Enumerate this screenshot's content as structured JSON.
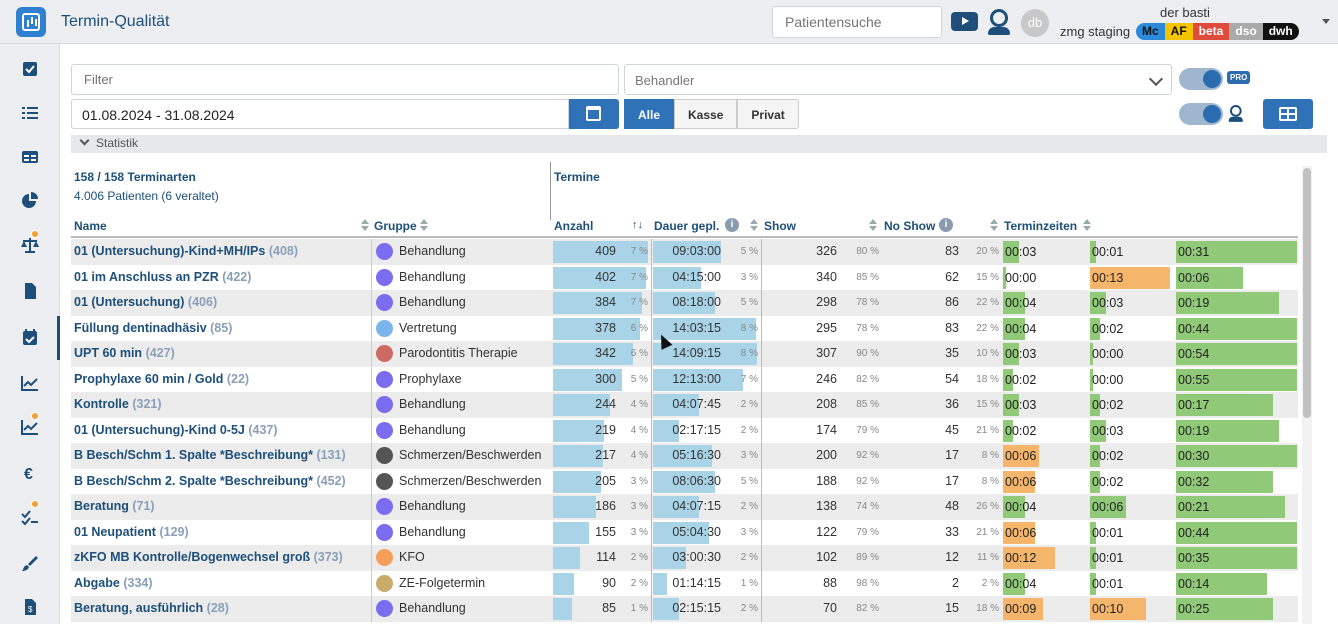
{
  "app": {
    "title": "Termin-Qualität"
  },
  "header": {
    "search_placeholder": "Patientensuche",
    "avatar": "db",
    "user": "der basti",
    "env": "zmg staging",
    "badges": [
      {
        "label": "Mc",
        "bg": "#2b8ad9",
        "fg": "#111"
      },
      {
        "label": "AF",
        "bg": "#f5c400",
        "fg": "#111"
      },
      {
        "label": "beta",
        "bg": "#e04b3b",
        "fg": "#fff"
      },
      {
        "label": "dso",
        "bg": "#aaaaaa",
        "fg": "#fff"
      },
      {
        "label": "dwh",
        "bg": "#111111",
        "fg": "#fff"
      }
    ]
  },
  "filters": {
    "filter_placeholder": "Filter",
    "behandler_placeholder": "Behandler",
    "date_range": "01.08.2024 - 31.08.2024",
    "pro_badge": "PRO",
    "segments": [
      "Alle",
      "Kasse",
      "Privat"
    ]
  },
  "statistik": {
    "label": "Statistik",
    "terminarten": "158 / 158 Terminarten",
    "patienten": "4.006 Patienten (6 veraltet)",
    "termine": "Termine"
  },
  "columns": {
    "name": "Name",
    "gruppe": "Gruppe",
    "anzahl": "Anzahl",
    "dauer": "Dauer gepl.",
    "show": "Show",
    "noshow": "No Show",
    "terminzeiten": "Terminzeiten"
  },
  "colors": {
    "primary": "#2f72b7",
    "bar_blue": "#a9d4e8",
    "bar_green": "#90c978",
    "bar_orange": "#f5b56a"
  },
  "rows": [
    {
      "name": "01 (Untersuchung)-Kind+MH/IPs",
      "id": "(408)",
      "group": "Behandlung",
      "gcolor": "#7b6cf0",
      "anzahl": "409",
      "anzahl_pct": "7 %",
      "anzahl_frac": 1.0,
      "dauer": "09:03:00",
      "dauer_pct": "5 %",
      "dauer_frac": 0.65,
      "show": "326",
      "show_pct": "80 %",
      "noshow": "83",
      "noshow_pct": "20 %",
      "tz": [
        {
          "t": "00:03",
          "c": "g",
          "f": 0.2
        },
        {
          "t": "00:01",
          "c": "g",
          "f": 0.07
        },
        {
          "t": "00:31",
          "c": "g",
          "f": 1.0
        }
      ]
    },
    {
      "name": "01 im Anschluss an PZR",
      "id": "(422)",
      "group": "Behandlung",
      "gcolor": "#7b6cf0",
      "anzahl": "402",
      "anzahl_pct": "7 %",
      "anzahl_frac": 0.98,
      "dauer": "04:15:00",
      "dauer_pct": "3 %",
      "dauer_frac": 0.46,
      "show": "340",
      "show_pct": "85 %",
      "noshow": "62",
      "noshow_pct": "15 %",
      "tz": [
        {
          "t": "00:00",
          "c": "g",
          "f": 0.02
        },
        {
          "t": "00:13",
          "c": "o",
          "f": 1.0
        },
        {
          "t": "00:06",
          "c": "g",
          "f": 0.55
        }
      ]
    },
    {
      "name": "01 (Untersuchung)",
      "id": "(406)",
      "group": "Behandlung",
      "gcolor": "#7b6cf0",
      "anzahl": "384",
      "anzahl_pct": "7 %",
      "anzahl_frac": 0.94,
      "dauer": "08:18:00",
      "dauer_pct": "5 %",
      "dauer_frac": 0.6,
      "show": "298",
      "show_pct": "78 %",
      "noshow": "86",
      "noshow_pct": "22 %",
      "tz": [
        {
          "t": "00:04",
          "c": "g",
          "f": 0.27
        },
        {
          "t": "00:03",
          "c": "g",
          "f": 0.2
        },
        {
          "t": "00:19",
          "c": "g",
          "f": 0.85
        }
      ]
    },
    {
      "name": "Füllung dentinadhäsiv",
      "id": "(85)",
      "group": "Vertretung",
      "gcolor": "#7ab4ea",
      "anzahl": "378",
      "anzahl_pct": "6 %",
      "anzahl_frac": 0.92,
      "dauer": "14:03:15",
      "dauer_pct": "8 %",
      "dauer_frac": 0.99,
      "show": "295",
      "show_pct": "78 %",
      "noshow": "83",
      "noshow_pct": "22 %",
      "tz": [
        {
          "t": "00:04",
          "c": "g",
          "f": 0.27
        },
        {
          "t": "00:02",
          "c": "g",
          "f": 0.13
        },
        {
          "t": "00:44",
          "c": "g",
          "f": 1.0
        }
      ]
    },
    {
      "name": "UPT 60 min",
      "id": "(427)",
      "group": "Parodontitis Therapie",
      "gcolor": "#cc6b63",
      "anzahl": "342",
      "anzahl_pct": "6 %",
      "anzahl_frac": 0.84,
      "dauer": "14:09:15",
      "dauer_pct": "8 %",
      "dauer_frac": 1.0,
      "show": "307",
      "show_pct": "90 %",
      "noshow": "35",
      "noshow_pct": "10 %",
      "tz": [
        {
          "t": "00:03",
          "c": "g",
          "f": 0.2
        },
        {
          "t": "00:00",
          "c": "g",
          "f": 0.02
        },
        {
          "t": "00:54",
          "c": "g",
          "f": 1.0
        }
      ]
    },
    {
      "name": "Prophylaxe 60 min / Gold",
      "id": "(22)",
      "group": "Prophylaxe",
      "gcolor": "#7b6cf0",
      "anzahl": "300",
      "anzahl_pct": "5 %",
      "anzahl_frac": 0.73,
      "dauer": "12:13:00",
      "dauer_pct": "7 %",
      "dauer_frac": 0.87,
      "show": "246",
      "show_pct": "82 %",
      "noshow": "54",
      "noshow_pct": "18 %",
      "tz": [
        {
          "t": "00:02",
          "c": "g",
          "f": 0.13
        },
        {
          "t": "00:00",
          "c": "g",
          "f": 0.02
        },
        {
          "t": "00:55",
          "c": "g",
          "f": 1.0
        }
      ]
    },
    {
      "name": "Kontrolle",
      "id": "(321)",
      "group": "Behandlung",
      "gcolor": "#7b6cf0",
      "anzahl": "244",
      "anzahl_pct": "4 %",
      "anzahl_frac": 0.6,
      "dauer": "04:07:45",
      "dauer_pct": "2 %",
      "dauer_frac": 0.44,
      "show": "208",
      "show_pct": "85 %",
      "noshow": "36",
      "noshow_pct": "15 %",
      "tz": [
        {
          "t": "00:03",
          "c": "g",
          "f": 0.2
        },
        {
          "t": "00:02",
          "c": "g",
          "f": 0.13
        },
        {
          "t": "00:17",
          "c": "g",
          "f": 0.8
        }
      ]
    },
    {
      "name": "01 (Untersuchung)-Kind 0-5J",
      "id": "(437)",
      "group": "Behandlung",
      "gcolor": "#7b6cf0",
      "anzahl": "219",
      "anzahl_pct": "4 %",
      "anzahl_frac": 0.54,
      "dauer": "02:17:15",
      "dauer_pct": "2 %",
      "dauer_frac": 0.25,
      "show": "174",
      "show_pct": "79 %",
      "noshow": "45",
      "noshow_pct": "21 %",
      "tz": [
        {
          "t": "00:02",
          "c": "g",
          "f": 0.13
        },
        {
          "t": "00:03",
          "c": "g",
          "f": 0.2
        },
        {
          "t": "00:19",
          "c": "g",
          "f": 0.85
        }
      ]
    },
    {
      "name": "B Besch/Schm 1. Spalte *Beschreibung*",
      "id": "(131)",
      "group": "Schmerzen/Beschwerden",
      "gcolor": "#555555",
      "anzahl": "217",
      "anzahl_pct": "4 %",
      "anzahl_frac": 0.53,
      "dauer": "05:16:30",
      "dauer_pct": "3 %",
      "dauer_frac": 0.57,
      "show": "200",
      "show_pct": "92 %",
      "noshow": "17",
      "noshow_pct": "8 %",
      "tz": [
        {
          "t": "00:06",
          "c": "o",
          "f": 0.45
        },
        {
          "t": "00:02",
          "c": "g",
          "f": 0.13
        },
        {
          "t": "00:30",
          "c": "g",
          "f": 1.0
        }
      ]
    },
    {
      "name": "B Besch/Schm 2. Spalte *Beschreibung*",
      "id": "(452)",
      "group": "Schmerzen/Beschwerden",
      "gcolor": "#555555",
      "anzahl": "205",
      "anzahl_pct": "3 %",
      "anzahl_frac": 0.5,
      "dauer": "08:06:30",
      "dauer_pct": "5 %",
      "dauer_frac": 0.6,
      "show": "188",
      "show_pct": "92 %",
      "noshow": "17",
      "noshow_pct": "8 %",
      "tz": [
        {
          "t": "00:06",
          "c": "o",
          "f": 0.4
        },
        {
          "t": "00:02",
          "c": "g",
          "f": 0.13
        },
        {
          "t": "00:32",
          "c": "g",
          "f": 0.8
        }
      ]
    },
    {
      "name": "Beratung",
      "id": "(71)",
      "group": "Behandlung",
      "gcolor": "#7b6cf0",
      "anzahl": "186",
      "anzahl_pct": "3 %",
      "anzahl_frac": 0.45,
      "dauer": "04:07:15",
      "dauer_pct": "2 %",
      "dauer_frac": 0.44,
      "show": "138",
      "show_pct": "74 %",
      "noshow": "48",
      "noshow_pct": "26 %",
      "tz": [
        {
          "t": "00:04",
          "c": "g",
          "f": 0.27
        },
        {
          "t": "00:06",
          "c": "g",
          "f": 0.45
        },
        {
          "t": "00:21",
          "c": "g",
          "f": 0.9
        }
      ]
    },
    {
      "name": "01 Neupatient",
      "id": "(129)",
      "group": "Behandlung",
      "gcolor": "#7b6cf0",
      "anzahl": "155",
      "anzahl_pct": "3 %",
      "anzahl_frac": 0.38,
      "dauer": "05:04:30",
      "dauer_pct": "3 %",
      "dauer_frac": 0.54,
      "show": "122",
      "show_pct": "79 %",
      "noshow": "33",
      "noshow_pct": "21 %",
      "tz": [
        {
          "t": "00:06",
          "c": "o",
          "f": 0.4
        },
        {
          "t": "00:01",
          "c": "g",
          "f": 0.07
        },
        {
          "t": "00:44",
          "c": "g",
          "f": 1.0
        }
      ]
    },
    {
      "name": "zKFO MB Kontrolle/Bogenwechsel groß",
      "id": "(373)",
      "group": "KFO",
      "gcolor": "#f5a05a",
      "anzahl": "114",
      "anzahl_pct": "2 %",
      "anzahl_frac": 0.28,
      "dauer": "03:00:30",
      "dauer_pct": "2 %",
      "dauer_frac": 0.32,
      "show": "102",
      "show_pct": "89 %",
      "noshow": "12",
      "noshow_pct": "11 %",
      "tz": [
        {
          "t": "00:12",
          "c": "o",
          "f": 0.65
        },
        {
          "t": "00:01",
          "c": "g",
          "f": 0.07
        },
        {
          "t": "00:35",
          "c": "g",
          "f": 1.0
        }
      ]
    },
    {
      "name": "Abgabe",
      "id": "(334)",
      "group": "ZE-Folgetermin",
      "gcolor": "#c9ac6b",
      "anzahl": "90",
      "anzahl_pct": "2 %",
      "anzahl_frac": 0.22,
      "dauer": "01:14:15",
      "dauer_pct": "1 %",
      "dauer_frac": 0.13,
      "show": "88",
      "show_pct": "98 %",
      "noshow": "2",
      "noshow_pct": "2 %",
      "tz": [
        {
          "t": "00:04",
          "c": "g",
          "f": 0.27
        },
        {
          "t": "00:01",
          "c": "g",
          "f": 0.07
        },
        {
          "t": "00:14",
          "c": "g",
          "f": 0.75
        }
      ]
    },
    {
      "name": "Beratung, ausführlich",
      "id": "(28)",
      "group": "Behandlung",
      "gcolor": "#7b6cf0",
      "anzahl": "85",
      "anzahl_pct": "1 %",
      "anzahl_frac": 0.2,
      "dauer": "02:15:15",
      "dauer_pct": "2 %",
      "dauer_frac": 0.25,
      "show": "70",
      "show_pct": "82 %",
      "noshow": "15",
      "noshow_pct": "18 %",
      "tz": [
        {
          "t": "00:09",
          "c": "o",
          "f": 0.5
        },
        {
          "t": "00:10",
          "c": "o",
          "f": 0.7
        },
        {
          "t": "00:25",
          "c": "g",
          "f": 0.8
        }
      ]
    }
  ]
}
